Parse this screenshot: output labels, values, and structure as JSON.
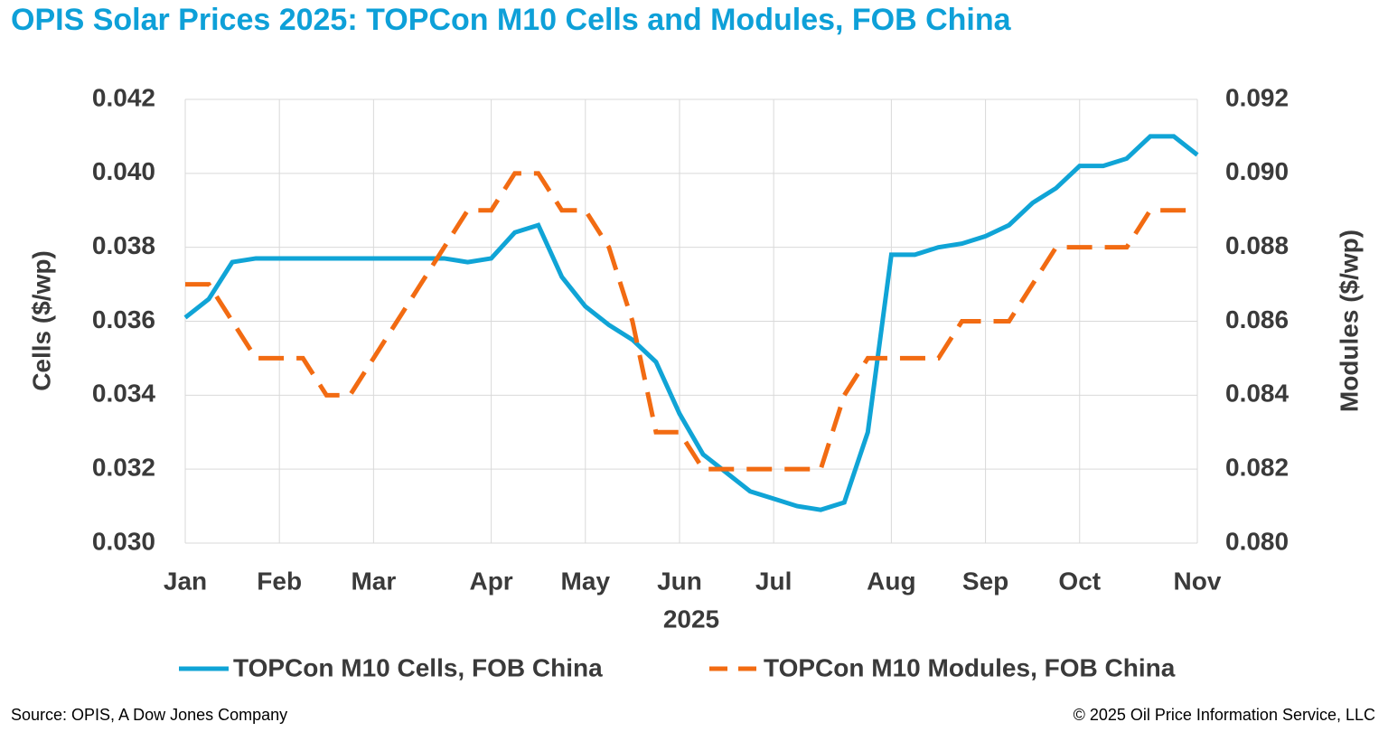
{
  "chart_data": {
    "type": "line",
    "title": "OPIS Solar Prices 2025: TOPCon M10 Cells and Modules, FOB China",
    "x_label": "2025",
    "y_label": "Cells ($/wp)",
    "y2_label": "Modules ($/wp)",
    "source": "Source: OPIS, A Dow Jones Company",
    "copyright": "© 2025 Oil Price Information Service, LLC",
    "categories": [
      "Jan",
      null,
      null,
      null,
      "Feb",
      null,
      null,
      null,
      "Mar",
      null,
      null,
      null,
      null,
      "Apr",
      null,
      null,
      null,
      "May",
      null,
      null,
      null,
      "Jun",
      null,
      null,
      null,
      "Jul",
      null,
      null,
      null,
      null,
      "Aug",
      null,
      null,
      null,
      "Sep",
      null,
      null,
      null,
      "Oct",
      null,
      null,
      null,
      null,
      "Nov"
    ],
    "ylim": [
      0.03,
      0.042
    ],
    "yticks": [
      {
        "value": 0.03,
        "label": "0.030"
      },
      0.032,
      0.034,
      0.036,
      0.038,
      {
        "value": 0.04,
        "label": "0.040"
      },
      0.042
    ],
    "y2lim": [
      0.08,
      0.092
    ],
    "y2ticks": [
      {
        "value": 0.08,
        "label": "0.080"
      },
      0.082,
      0.084,
      0.086,
      0.088,
      {
        "value": 0.09,
        "label": "0.090"
      },
      0.092
    ],
    "grid": true,
    "legend": "bottom",
    "series": [
      {
        "name": "TOPCon M10 Cells, FOB China",
        "color": "#10a4d6",
        "style": "solid",
        "values": [
          0.0361,
          0.0366,
          0.0376,
          0.0377,
          0.0377,
          0.0377,
          0.0377,
          0.0377,
          0.0377,
          0.0377,
          0.0377,
          0.0377,
          0.0376,
          0.0377,
          0.0384,
          0.0386,
          0.0372,
          0.0364,
          0.0359,
          0.0355,
          0.0349,
          0.0335,
          0.0324,
          0.0319,
          0.0314,
          0.0312,
          0.031,
          0.0309,
          0.0311,
          0.033,
          0.0378,
          0.0378,
          0.038,
          0.0381,
          0.0383,
          0.0386,
          0.0392,
          0.0396,
          0.0402,
          0.0402,
          0.0404,
          0.041,
          0.041,
          0.0405
        ]
      },
      {
        "name": "TOPCon M10 Modules, FOB China",
        "color": "#f26b12",
        "style": "dashed",
        "axis": "y2",
        "values": [
          0.087,
          0.087,
          0.086,
          0.085,
          0.085,
          0.085,
          0.084,
          0.084,
          0.085,
          0.086,
          0.087,
          0.088,
          0.089,
          0.089,
          0.09,
          0.09,
          0.089,
          0.089,
          0.088,
          0.086,
          0.083,
          0.083,
          0.082,
          0.082,
          0.082,
          0.082,
          0.082,
          0.082,
          0.084,
          0.085,
          0.085,
          0.085,
          0.085,
          0.086,
          0.086,
          0.086,
          0.087,
          0.088,
          0.088,
          0.088,
          0.088,
          0.089,
          0.089,
          0.089
        ]
      }
    ]
  }
}
